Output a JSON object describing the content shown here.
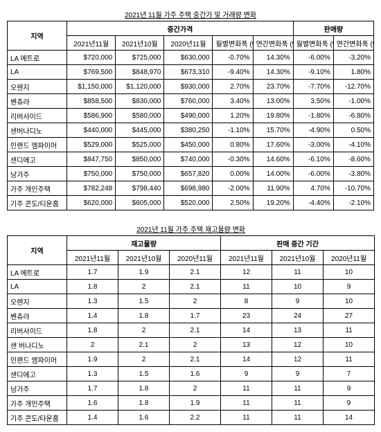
{
  "table1": {
    "title": "2021년 11월 가주 주택 중간가 및 거래량 변화",
    "region_header": "지역",
    "group1": "중간가격",
    "group2": "판매량",
    "cols": [
      "2021년11월",
      "2021년10월",
      "2020년11월",
      "월별변화폭 (%)",
      "연간변화폭 (%)",
      "월별변화폭 (%)",
      "연간변화폭 (%)"
    ],
    "rows": [
      {
        "region": "LA 메트로",
        "c": [
          "$720,000",
          "$725,000",
          "$630,000",
          "-0.70%",
          "14.30%",
          "-6.00%",
          "-3.20%"
        ]
      },
      {
        "region": "LA",
        "c": [
          "$769,500",
          "$848,970",
          "$673,310",
          "-9.40%",
          "14.30%",
          "-9.10%",
          "1.80%"
        ]
      },
      {
        "region": "오렌지",
        "c": [
          "$1,150,000",
          "$1,120,000",
          "$930,000",
          "2.70%",
          "23.70%",
          "-7.70%",
          "-12.70%"
        ]
      },
      {
        "region": "벤츄라",
        "c": [
          "$858,500",
          "$830,000",
          "$760,000",
          "3.40%",
          "13.00%",
          "3.50%",
          "-1.00%"
        ]
      },
      {
        "region": "리버사이드",
        "c": [
          "$586,900",
          "$580,000",
          "$490,000",
          "1.20%",
          "19.80%",
          "-1.80%",
          "-6.80%"
        ]
      },
      {
        "region": "샌버나디노",
        "c": [
          "$440,000",
          "$445,000",
          "$380,250",
          "-1.10%",
          "15.70%",
          "-4.90%",
          "0.50%"
        ]
      },
      {
        "region": "인랜드 엠파이어",
        "c": [
          "$529,000",
          "$525,000",
          "$450,000",
          "0.80%",
          "17.60%",
          "-3.00%",
          "-4.10%"
        ]
      },
      {
        "region": "샌디에고",
        "c": [
          "$847,750",
          "$850,000",
          "$740,000",
          "-0.30%",
          "14.60%",
          "-6.10%",
          "-8.60%"
        ]
      },
      {
        "region": "남가주",
        "c": [
          "$750,000",
          "$750,000",
          "$657,820",
          "0.00%",
          "14.00%",
          "-6.00%",
          "-3.80%"
        ]
      },
      {
        "region": "가주 개인주택",
        "c": [
          "$782,248",
          "$798,440",
          "$698,980",
          "-2.00%",
          "11.90%",
          "4.70%",
          "-10.70%"
        ]
      },
      {
        "region": "기주 콘도/티운홈",
        "c": [
          "$620,000",
          "$605,000",
          "$520,000",
          "2.50%",
          "19.20%",
          "-4.40%",
          "-2.10%"
        ]
      }
    ]
  },
  "table2": {
    "title": "2021년 11월 가주 주택 재고물량 변화",
    "region_header": "지역",
    "group1": "재고물량",
    "group2": "판매 중간 기간",
    "cols": [
      "2021년11월",
      "2021년10월",
      "2020년11월",
      "2021년11월",
      "2021년10월",
      "2020년11월"
    ],
    "rows": [
      {
        "region": "LA 메트로",
        "c": [
          "1.7",
          "1.9",
          "2.1",
          "12",
          "11",
          "10"
        ]
      },
      {
        "region": "LA",
        "c": [
          "1.8",
          "2",
          "2.1",
          "11",
          "10",
          "9"
        ]
      },
      {
        "region": "오렌지",
        "c": [
          "1.3",
          "1.5",
          "2",
          "8",
          "9",
          "10"
        ]
      },
      {
        "region": "벤츄라",
        "c": [
          "1.4",
          "1.8",
          "1.7",
          "23",
          "24",
          "27"
        ]
      },
      {
        "region": "리버사이드",
        "c": [
          "1.8",
          "2",
          "2.1",
          "14",
          "13",
          "11"
        ]
      },
      {
        "region": "샌 버나디노",
        "c": [
          "2",
          "2.1",
          "2",
          "13",
          "12",
          "10"
        ]
      },
      {
        "region": "인랜드 엠파이어",
        "c": [
          "1.9",
          "2",
          "2.1",
          "14",
          "12",
          "11"
        ]
      },
      {
        "region": "샌디에고",
        "c": [
          "1.3",
          "1.5",
          "1.6",
          "9",
          "9",
          "7"
        ]
      },
      {
        "region": "남가주",
        "c": [
          "1.7",
          "1.8",
          "2",
          "11",
          "11",
          "9"
        ]
      },
      {
        "region": "가주 개인주택",
        "c": [
          "1.6",
          "1.8",
          "1.9",
          "11",
          "11",
          "9"
        ]
      },
      {
        "region": "기주 콘도/타운홈",
        "c": [
          "1.4",
          "1.6",
          "2.2",
          "11",
          "11",
          "14"
        ]
      }
    ]
  },
  "colors": {
    "border": "#000000",
    "background": "#ffffff"
  }
}
